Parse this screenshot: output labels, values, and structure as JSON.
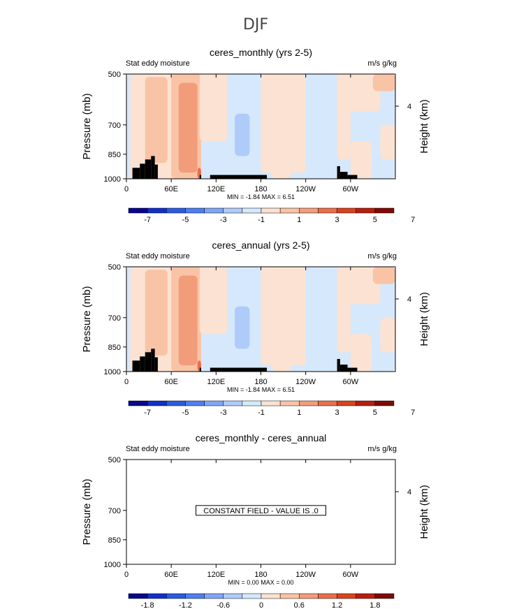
{
  "figure": {
    "suptitle": "DJF",
    "colors": {
      "land": "#000000",
      "frame": "#000000",
      "background": "#ffffff"
    }
  },
  "colorbar_scales": {
    "main": {
      "colors": [
        "#08088a",
        "#1030c8",
        "#2a5ce0",
        "#4f7ef0",
        "#7fa6f6",
        "#aecbfa",
        "#d6e8fb",
        "#fbe2d2",
        "#f9c3a6",
        "#f39c7a",
        "#ea6e4c",
        "#d8431f",
        "#b81e0e",
        "#7f0a05"
      ],
      "tick_labels": [
        "-7",
        "-5",
        "-3",
        "-1",
        "1",
        "3",
        "5",
        "7"
      ]
    },
    "diff": {
      "colors": [
        "#08088a",
        "#1030c8",
        "#2a5ce0",
        "#4f7ef0",
        "#7fa6f6",
        "#aecbfa",
        "#d6e8fb",
        "#fbe2d2",
        "#f9c3a6",
        "#f39c7a",
        "#ea6e4c",
        "#d8431f",
        "#b81e0e",
        "#7f0a05"
      ],
      "tick_labels": [
        "-1.8",
        "-1.2",
        "-0.6",
        "0",
        "0.6",
        "1.2",
        "1.8"
      ]
    }
  },
  "chart_data": [
    {
      "type": "heatmap",
      "title": "ceres_monthly (yrs 2-5)",
      "variable": "Stat eddy moisture",
      "units": "m/s g/kg",
      "ylabel": "Pressure (mb)",
      "y2label": "Height (km)",
      "x_ticks": [
        "0",
        "60E",
        "120E",
        "180",
        "120W",
        "60W"
      ],
      "y_ticks": [
        "500",
        "700",
        "850",
        "1000"
      ],
      "y2_ticks": [
        "4"
      ],
      "stats": "MIN =   -1.84   MAX =    6.51",
      "stats_min": -1.84,
      "stats_max": 6.51,
      "constant_field": false,
      "constant_label": "",
      "xlim": [
        0,
        360
      ],
      "ylim": [
        1000,
        500
      ],
      "colorbar": "main",
      "fields": [
        {
          "lon": [
            0,
            360
          ],
          "p": [
            500,
            1000
          ],
          "color": "#d6e8fb"
        },
        {
          "lon": [
            5,
            70
          ],
          "p": [
            500,
            1000
          ],
          "color": "#fbe2d2"
        },
        {
          "lon": [
            25,
            55
          ],
          "p": [
            510,
            900
          ],
          "color": "#f9c3a6"
        },
        {
          "lon": [
            60,
            100
          ],
          "p": [
            500,
            1000
          ],
          "color": "#f9c3a6"
        },
        {
          "lon": [
            70,
            95
          ],
          "p": [
            530,
            960
          ],
          "color": "#f39c7a"
        },
        {
          "lon": [
            98,
            135
          ],
          "p": [
            500,
            780
          ],
          "color": "#fbe2d2"
        },
        {
          "lon": [
            180,
            240
          ],
          "p": [
            500,
            960
          ],
          "color": "#fbe2d2"
        },
        {
          "lon": [
            195,
            220
          ],
          "p": [
            820,
            1000
          ],
          "color": "#fbe2d2"
        },
        {
          "lon": [
            290,
            340
          ],
          "p": [
            500,
            640
          ],
          "color": "#fbe2d2"
        },
        {
          "lon": [
            330,
            360
          ],
          "p": [
            500,
            560
          ],
          "color": "#f9c3a6"
        },
        {
          "lon": [
            282,
            300
          ],
          "p": [
            500,
            880
          ],
          "color": "#fbe2d2"
        },
        {
          "lon": [
            300,
            328
          ],
          "p": [
            780,
            1000
          ],
          "color": "#fbe2d2"
        },
        {
          "lon": [
            340,
            360
          ],
          "p": [
            700,
            880
          ],
          "color": "#fbe2d2"
        },
        {
          "lon": [
            145,
            165
          ],
          "p": [
            650,
            860
          ],
          "color": "#aecbfa"
        },
        {
          "lon": [
            95,
            100
          ],
          "p": [
            930,
            1000
          ],
          "color": "#ea6e4c"
        }
      ],
      "land": [
        {
          "lon": [
            8,
            18
          ],
          "p": [
            930,
            1000
          ]
        },
        {
          "lon": [
            18,
            25
          ],
          "p": [
            905,
            1000
          ]
        },
        {
          "lon": [
            25,
            33
          ],
          "p": [
            880,
            1000
          ]
        },
        {
          "lon": [
            33,
            38
          ],
          "p": [
            860,
            1000
          ]
        },
        {
          "lon": [
            38,
            42
          ],
          "p": [
            910,
            1000
          ]
        },
        {
          "lon": [
            98,
            100
          ],
          "p": [
            975,
            1000
          ]
        },
        {
          "lon": [
            112,
            188
          ],
          "p": [
            975,
            1000
          ]
        },
        {
          "lon": [
            282,
            286
          ],
          "p": [
            920,
            1000
          ]
        },
        {
          "lon": [
            286,
            296
          ],
          "p": [
            955,
            1000
          ]
        },
        {
          "lon": [
            296,
            309
          ],
          "p": [
            975,
            1000
          ]
        }
      ]
    },
    {
      "type": "heatmap",
      "title": "ceres_annual (yrs 2-5)",
      "variable": "Stat eddy moisture",
      "units": "m/s g/kg",
      "ylabel": "Pressure (mb)",
      "y2label": "Height (km)",
      "x_ticks": [
        "0",
        "60E",
        "120E",
        "180",
        "120W",
        "60W"
      ],
      "y_ticks": [
        "500",
        "700",
        "850",
        "1000"
      ],
      "y2_ticks": [
        "4"
      ],
      "stats": "MIN =   -1.84   MAX =    6.51",
      "stats_min": -1.84,
      "stats_max": 6.51,
      "constant_field": false,
      "constant_label": "",
      "xlim": [
        0,
        360
      ],
      "ylim": [
        1000,
        500
      ],
      "colorbar": "main",
      "fields": [
        {
          "lon": [
            0,
            360
          ],
          "p": [
            500,
            1000
          ],
          "color": "#d6e8fb"
        },
        {
          "lon": [
            5,
            70
          ],
          "p": [
            500,
            1000
          ],
          "color": "#fbe2d2"
        },
        {
          "lon": [
            25,
            55
          ],
          "p": [
            510,
            900
          ],
          "color": "#f9c3a6"
        },
        {
          "lon": [
            60,
            100
          ],
          "p": [
            500,
            1000
          ],
          "color": "#f9c3a6"
        },
        {
          "lon": [
            70,
            95
          ],
          "p": [
            530,
            960
          ],
          "color": "#f39c7a"
        },
        {
          "lon": [
            98,
            135
          ],
          "p": [
            500,
            780
          ],
          "color": "#fbe2d2"
        },
        {
          "lon": [
            180,
            240
          ],
          "p": [
            500,
            960
          ],
          "color": "#fbe2d2"
        },
        {
          "lon": [
            195,
            220
          ],
          "p": [
            820,
            1000
          ],
          "color": "#fbe2d2"
        },
        {
          "lon": [
            290,
            340
          ],
          "p": [
            500,
            640
          ],
          "color": "#fbe2d2"
        },
        {
          "lon": [
            330,
            360
          ],
          "p": [
            500,
            560
          ],
          "color": "#f9c3a6"
        },
        {
          "lon": [
            282,
            300
          ],
          "p": [
            500,
            880
          ],
          "color": "#fbe2d2"
        },
        {
          "lon": [
            300,
            328
          ],
          "p": [
            780,
            1000
          ],
          "color": "#fbe2d2"
        },
        {
          "lon": [
            340,
            360
          ],
          "p": [
            700,
            880
          ],
          "color": "#fbe2d2"
        },
        {
          "lon": [
            145,
            165
          ],
          "p": [
            650,
            860
          ],
          "color": "#aecbfa"
        },
        {
          "lon": [
            95,
            100
          ],
          "p": [
            930,
            1000
          ],
          "color": "#ea6e4c"
        }
      ],
      "land": [
        {
          "lon": [
            8,
            18
          ],
          "p": [
            930,
            1000
          ]
        },
        {
          "lon": [
            18,
            25
          ],
          "p": [
            905,
            1000
          ]
        },
        {
          "lon": [
            25,
            33
          ],
          "p": [
            880,
            1000
          ]
        },
        {
          "lon": [
            33,
            38
          ],
          "p": [
            860,
            1000
          ]
        },
        {
          "lon": [
            38,
            42
          ],
          "p": [
            910,
            1000
          ]
        },
        {
          "lon": [
            98,
            100
          ],
          "p": [
            975,
            1000
          ]
        },
        {
          "lon": [
            112,
            188
          ],
          "p": [
            975,
            1000
          ]
        },
        {
          "lon": [
            282,
            286
          ],
          "p": [
            920,
            1000
          ]
        },
        {
          "lon": [
            286,
            296
          ],
          "p": [
            955,
            1000
          ]
        },
        {
          "lon": [
            296,
            309
          ],
          "p": [
            975,
            1000
          ]
        }
      ]
    },
    {
      "type": "heatmap",
      "title": "ceres_monthly - ceres_annual",
      "variable": "Stat eddy moisture",
      "units": "m/s g/kg",
      "ylabel": "Pressure (mb)",
      "y2label": "Height (km)",
      "x_ticks": [
        "0",
        "60E",
        "120E",
        "180",
        "120W",
        "60W"
      ],
      "y_ticks": [
        "500",
        "700",
        "850",
        "1000"
      ],
      "y2_ticks": [
        "4"
      ],
      "stats": "MIN =    0.00   MAX =    0.00",
      "stats_min": 0.0,
      "stats_max": 0.0,
      "constant_field": true,
      "constant_label": "CONSTANT FIELD - VALUE IS .0",
      "xlim": [
        0,
        360
      ],
      "ylim": [
        1000,
        500
      ],
      "colorbar": "diff",
      "fields": [],
      "land": []
    }
  ]
}
